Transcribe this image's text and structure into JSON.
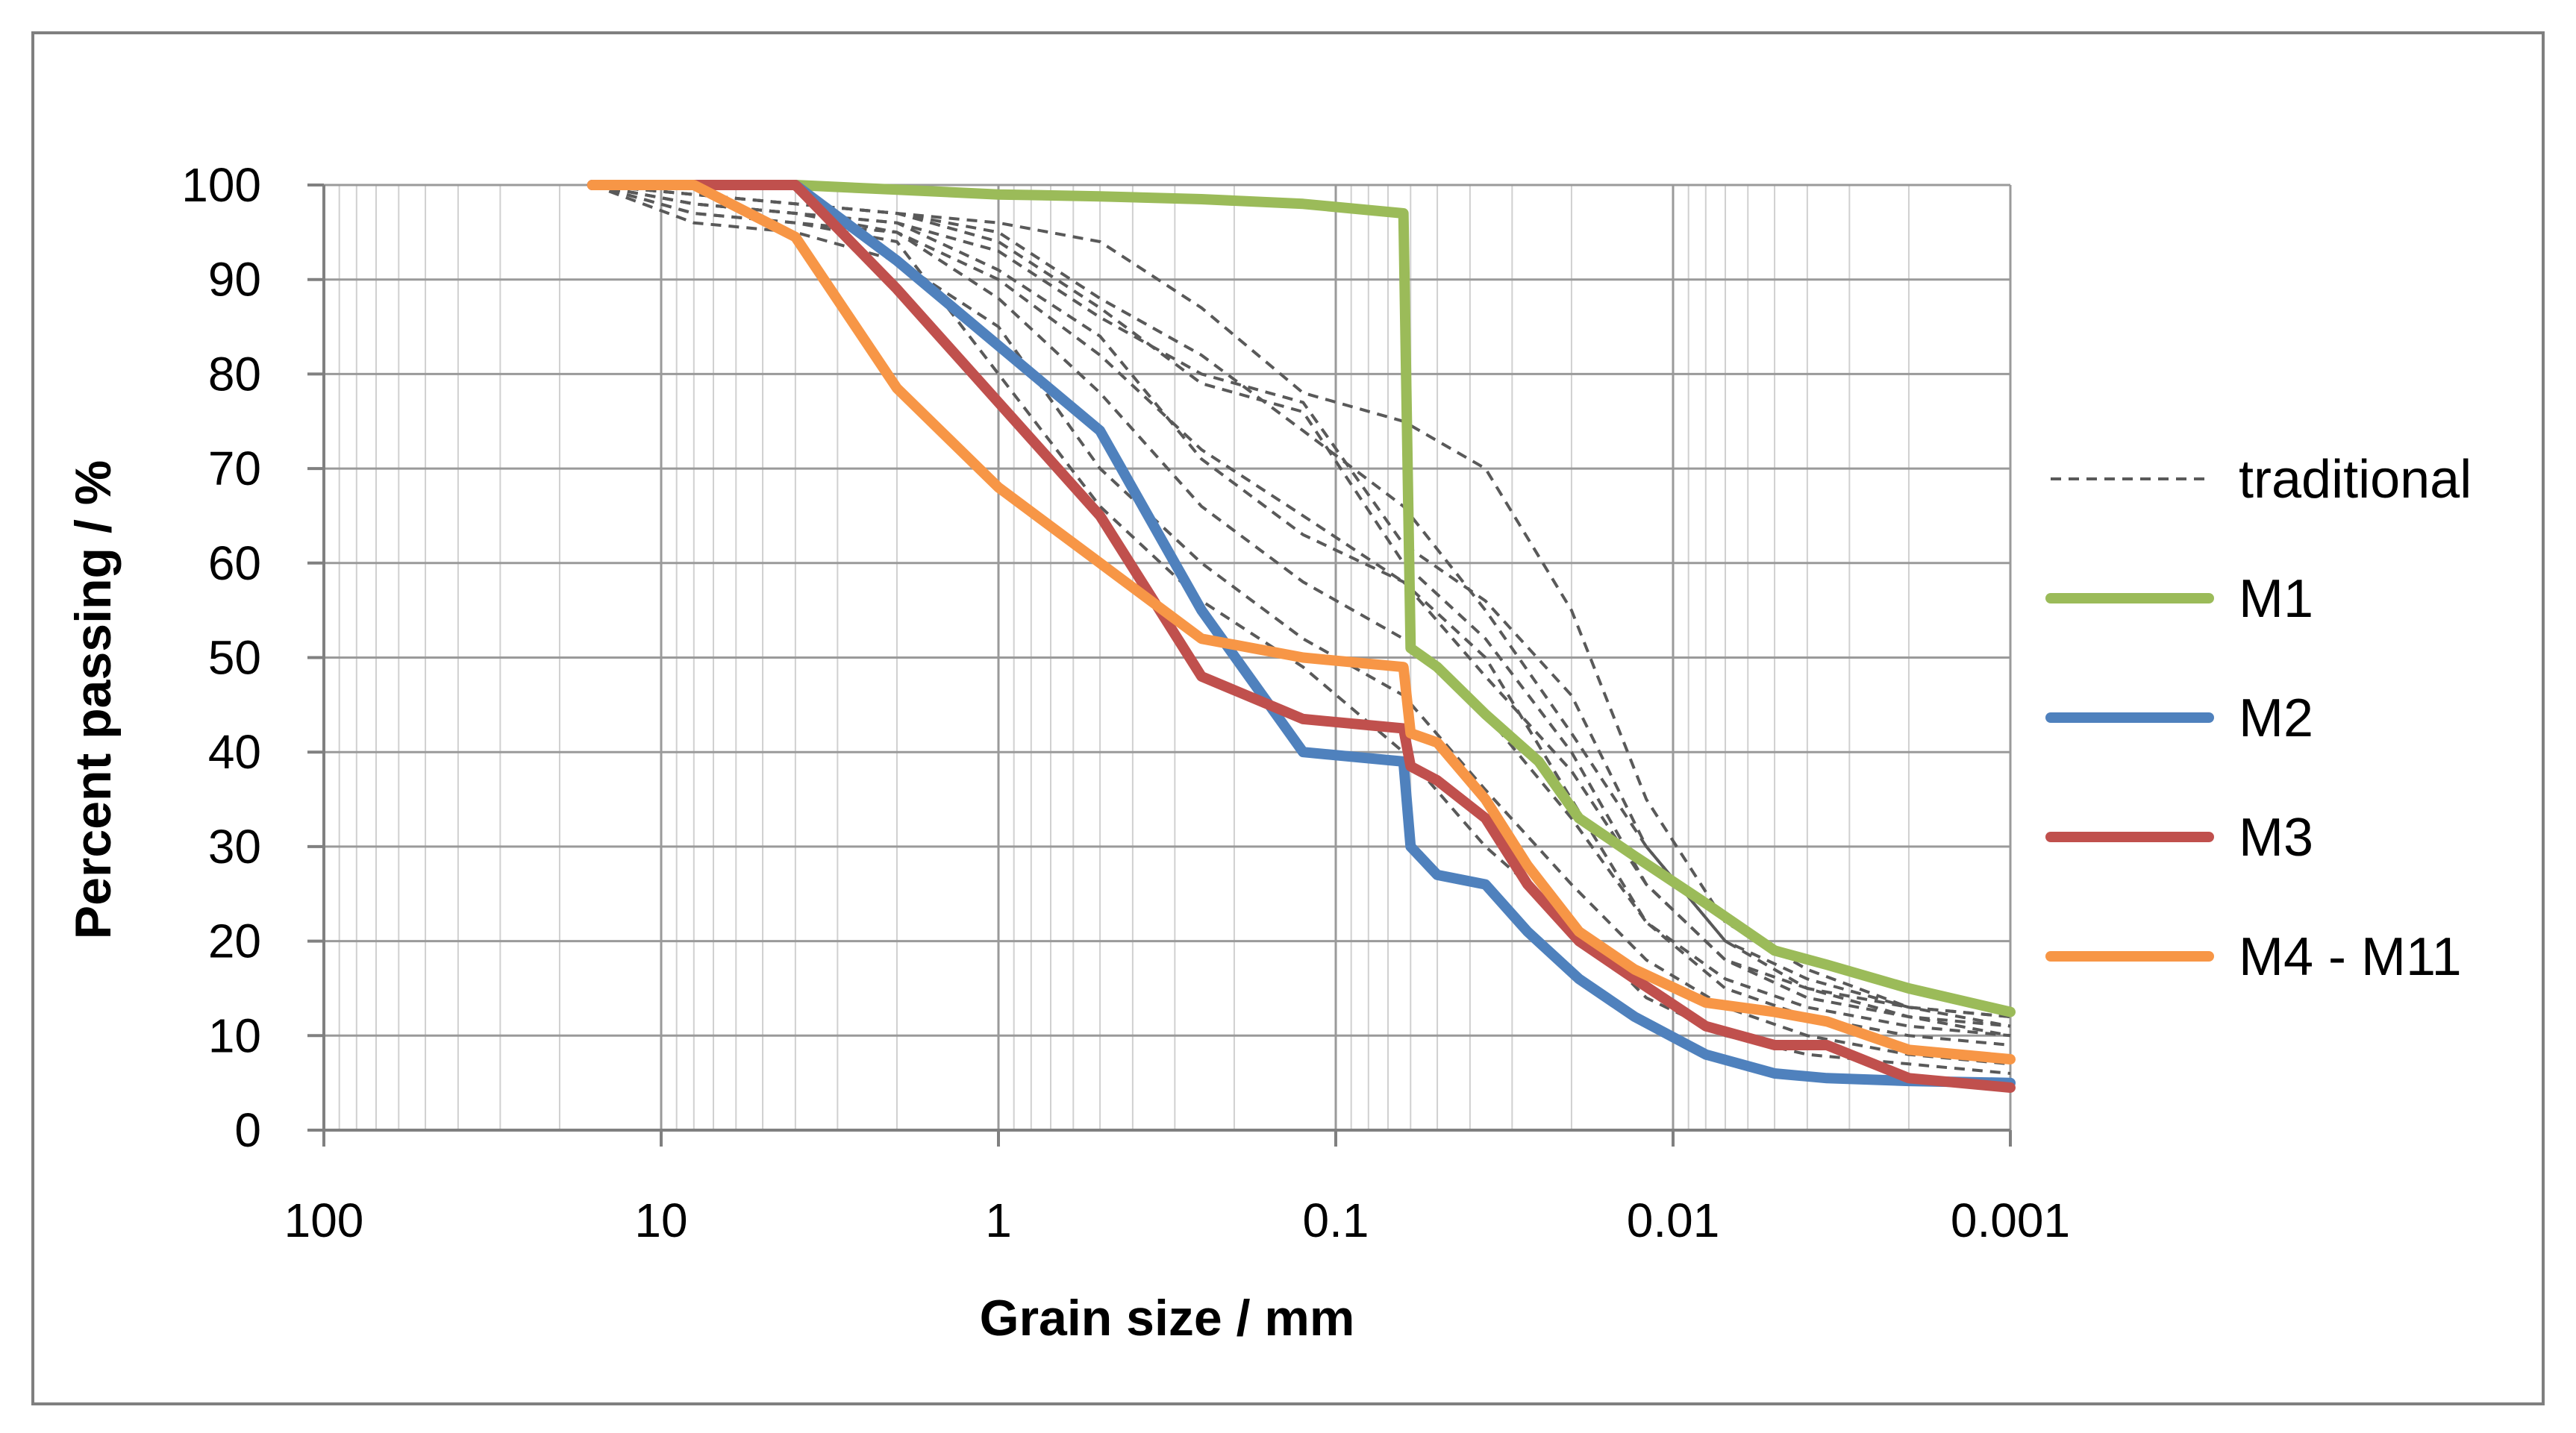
{
  "chart_data": {
    "type": "line",
    "title": "",
    "xlabel": "Grain size / mm",
    "ylabel": "Percent passing / %",
    "x_scale": "log",
    "x_reversed": true,
    "xlim": [
      100,
      0.001
    ],
    "ylim": [
      0,
      100
    ],
    "grid": true,
    "legend_position": "right",
    "x_ticks": [
      {
        "value": 100,
        "label": "100"
      },
      {
        "value": 10,
        "label": "10"
      },
      {
        "value": 1,
        "label": "1"
      },
      {
        "value": 0.1,
        "label": "0.1"
      },
      {
        "value": 0.01,
        "label": "0.01"
      },
      {
        "value": 0.001,
        "label": "0.001"
      }
    ],
    "y_ticks": [
      {
        "value": 0,
        "label": "0"
      },
      {
        "value": 10,
        "label": "10"
      },
      {
        "value": 20,
        "label": "20"
      },
      {
        "value": 30,
        "label": "30"
      },
      {
        "value": 40,
        "label": "40"
      },
      {
        "value": 50,
        "label": "50"
      },
      {
        "value": 60,
        "label": "60"
      },
      {
        "value": 70,
        "label": "70"
      },
      {
        "value": 80,
        "label": "80"
      },
      {
        "value": 90,
        "label": "90"
      },
      {
        "value": 100,
        "label": "100"
      }
    ],
    "legend": [
      {
        "label": "traditional",
        "color": "#595959",
        "dashed": true
      },
      {
        "label": "M1",
        "color": "#9BBB59",
        "dashed": false
      },
      {
        "label": "M2",
        "color": "#4F81BD",
        "dashed": false
      },
      {
        "label": "M3",
        "color": "#C0504D",
        "dashed": false
      },
      {
        "label": "M4 - M11",
        "color": "#F79646",
        "dashed": false
      }
    ],
    "series": [
      {
        "name": "traditional",
        "group": "traditional",
        "color": "#595959",
        "dashed": true,
        "x": [
          16,
          8,
          4,
          2,
          1,
          0.5,
          0.25,
          0.125,
          0.063,
          0.036,
          0.02,
          0.012,
          0.007,
          0.004,
          0.002,
          0.001
        ],
        "y": [
          100,
          98,
          97,
          96,
          91,
          84,
          71,
          63,
          58,
          50,
          35,
          22,
          15,
          12,
          10,
          9
        ]
      },
      {
        "name": "traditional",
        "group": "traditional",
        "color": "#595959",
        "dashed": true,
        "x": [
          16,
          8,
          4,
          2,
          1,
          0.5,
          0.25,
          0.125,
          0.063,
          0.036,
          0.02,
          0.012,
          0.007,
          0.004,
          0.002,
          0.001
        ],
        "y": [
          100,
          99,
          98,
          97,
          94,
          87,
          79,
          76,
          60,
          52,
          40,
          26,
          18,
          14,
          12,
          11
        ]
      },
      {
        "name": "traditional",
        "group": "traditional",
        "color": "#595959",
        "dashed": true,
        "x": [
          16,
          8,
          4,
          2,
          1,
          0.5,
          0.25,
          0.125,
          0.063,
          0.036,
          0.02,
          0.012,
          0.007,
          0.004,
          0.002,
          0.001
        ],
        "y": [
          100,
          98,
          97,
          95,
          88,
          78,
          66,
          58,
          52,
          44,
          33,
          22,
          16,
          13,
          11,
          10
        ]
      },
      {
        "name": "traditional",
        "group": "traditional",
        "color": "#595959",
        "dashed": true,
        "x": [
          16,
          8,
          4,
          2,
          1,
          0.5,
          0.25,
          0.125,
          0.063,
          0.036,
          0.02,
          0.012,
          0.007,
          0.004,
          0.002,
          0.001
        ],
        "y": [
          100,
          99,
          98,
          97,
          96,
          94,
          87,
          78,
          75,
          70,
          55,
          35,
          22,
          17,
          13,
          12
        ]
      },
      {
        "name": "traditional",
        "group": "traditional",
        "color": "#595959",
        "dashed": true,
        "x": [
          16,
          8,
          4,
          2,
          1,
          0.5,
          0.25,
          0.125,
          0.063,
          0.036,
          0.02,
          0.012,
          0.007,
          0.004,
          0.002,
          0.001
        ],
        "y": [
          100,
          96,
          95,
          92,
          85,
          70,
          60,
          52,
          46,
          36,
          26,
          18,
          13,
          10,
          8,
          7
        ]
      },
      {
        "name": "traditional",
        "group": "traditional",
        "color": "#595959",
        "dashed": true,
        "x": [
          16,
          8,
          4,
          2,
          1,
          0.5,
          0.25,
          0.125,
          0.063,
          0.036,
          0.02,
          0.012,
          0.007,
          0.004,
          0.002,
          0.001
        ],
        "y": [
          100,
          97,
          96,
          94,
          80,
          66,
          56,
          49,
          40,
          30,
          22,
          14,
          10,
          8,
          7,
          6
        ]
      },
      {
        "name": "traditional",
        "group": "traditional",
        "color": "#595959",
        "dashed": true,
        "x": [
          16,
          8,
          4,
          2,
          1,
          0.5,
          0.25,
          0.125,
          0.063,
          0.036,
          0.02,
          0.012,
          0.007,
          0.004,
          0.002,
          0.001
        ],
        "y": [
          100,
          98,
          97,
          96,
          93,
          86,
          80,
          77,
          62,
          56,
          46,
          30,
          20,
          15,
          13,
          12
        ]
      },
      {
        "name": "traditional",
        "group": "traditional",
        "color": "#595959",
        "dashed": true,
        "x": [
          16,
          8,
          4,
          2,
          1,
          0.5,
          0.25,
          0.125,
          0.063,
          0.036,
          0.02,
          0.012,
          0.007,
          0.004,
          0.002,
          0.001
        ],
        "y": [
          100,
          97,
          96,
          95,
          90,
          82,
          72,
          65,
          58,
          48,
          38,
          26,
          18,
          15,
          12,
          10
        ]
      },
      {
        "name": "traditional",
        "group": "traditional",
        "color": "#595959",
        "dashed": true,
        "x": [
          16,
          8,
          4,
          2,
          1,
          0.5,
          0.25,
          0.125,
          0.063,
          0.036,
          0.02,
          0.012,
          0.007,
          0.004,
          0.002,
          0.001
        ],
        "y": [
          100,
          99,
          98,
          97,
          95,
          88,
          82,
          74,
          66,
          55,
          42,
          30,
          20,
          16,
          13,
          11
        ]
      },
      {
        "name": "M1",
        "group": "M1",
        "color": "#9BBB59",
        "dashed": false,
        "x": [
          8,
          4,
          2,
          1,
          0.5,
          0.25,
          0.125,
          0.063,
          0.06,
          0.05,
          0.036,
          0.025,
          0.019,
          0.013,
          0.008,
          0.005,
          0.0035,
          0.002,
          0.001
        ],
        "y": [
          100,
          100,
          99.5,
          99,
          98.8,
          98.5,
          98,
          97,
          51,
          49,
          44,
          39,
          33,
          29,
          24,
          19,
          17.5,
          15,
          12.5
        ]
      },
      {
        "name": "M2",
        "group": "M2",
        "color": "#4F81BD",
        "dashed": false,
        "x": [
          16,
          8,
          4,
          2,
          1,
          0.5,
          0.25,
          0.125,
          0.063,
          0.06,
          0.05,
          0.036,
          0.027,
          0.019,
          0.013,
          0.008,
          0.005,
          0.0035,
          0.002,
          0.001
        ],
        "y": [
          100,
          100,
          100,
          92,
          83,
          74,
          55,
          40,
          39,
          30,
          27,
          26,
          21,
          16,
          12,
          8,
          6,
          5.5,
          5.2,
          5
        ]
      },
      {
        "name": "M3",
        "group": "M3",
        "color": "#C0504D",
        "dashed": false,
        "x": [
          16,
          8,
          4,
          2,
          1,
          0.5,
          0.25,
          0.125,
          0.063,
          0.06,
          0.05,
          0.036,
          0.027,
          0.019,
          0.013,
          0.008,
          0.005,
          0.0035,
          0.002,
          0.001
        ],
        "y": [
          100,
          100,
          100,
          89,
          77,
          65,
          48,
          43.5,
          42.5,
          38.5,
          37,
          33,
          26,
          20,
          16,
          11,
          9,
          9,
          5.5,
          4.5
        ]
      },
      {
        "name": "M4 - M11",
        "group": "M4 - M11",
        "color": "#F79646",
        "dashed": false,
        "x": [
          16,
          8,
          4,
          2,
          1,
          0.5,
          0.25,
          0.125,
          0.063,
          0.06,
          0.05,
          0.036,
          0.027,
          0.019,
          0.013,
          0.008,
          0.005,
          0.0035,
          0.002,
          0.001
        ],
        "y": [
          100,
          100,
          94.5,
          78.5,
          68,
          60,
          52,
          50,
          49,
          42,
          41,
          35,
          28,
          21,
          17,
          13.5,
          12.5,
          11.5,
          8.5,
          7.5
        ]
      }
    ]
  }
}
